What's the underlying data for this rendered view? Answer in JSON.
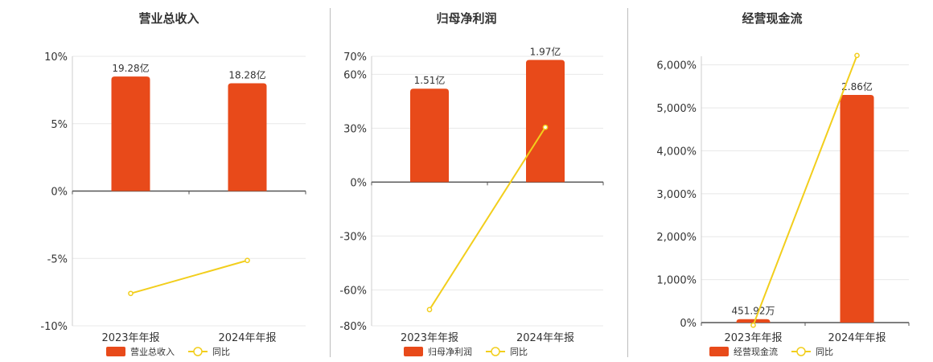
{
  "colors": {
    "bar": "#E84A1A",
    "line": "#F2CE1C",
    "grid": "#e8e8e8",
    "axis": "#555555"
  },
  "chart_data": [
    {
      "type": "bar",
      "title": "营业总收入",
      "categories": [
        "2023年年报",
        "2024年年报"
      ],
      "bar_name": "营业总收入",
      "line_name": "同比",
      "ylim": [
        -10,
        10
      ],
      "yticks": [
        10,
        5,
        0,
        -5,
        -10
      ],
      "ytick_labels": [
        "10%",
        "5%",
        "0%",
        "-5%",
        "-10%"
      ],
      "bar_values": [
        8.5,
        8.0
      ],
      "bar_labels": [
        "19.28亿",
        "18.28亿"
      ],
      "line_values": [
        -7.6,
        -5.15
      ],
      "grid": true,
      "legend": "bottom"
    },
    {
      "type": "bar",
      "title": "归母净利润",
      "categories": [
        "2023年年报",
        "2024年年报"
      ],
      "bar_name": "归母净利润",
      "line_name": "同比",
      "ylim": [
        -80,
        70
      ],
      "yticks": [
        70,
        60,
        30,
        0,
        -30,
        -60,
        -80
      ],
      "ytick_labels": [
        "70%",
        "60%",
        "30%",
        "0%",
        "-30%",
        "-60%",
        "-80%"
      ],
      "bar_values": [
        52,
        68
      ],
      "bar_labels": [
        "1.51亿",
        "1.97亿"
      ],
      "line_values": [
        -71,
        30.5
      ],
      "grid": true,
      "legend": "bottom"
    },
    {
      "type": "bar",
      "title": "经营现金流",
      "categories": [
        "2023年年报",
        "2024年年报"
      ],
      "bar_name": "经营现金流",
      "line_name": "同比",
      "ylim": [
        0,
        6200
      ],
      "yticks": [
        6000,
        5000,
        4000,
        3000,
        2000,
        1000,
        0
      ],
      "ytick_labels": [
        "6,000%",
        "5,000%",
        "4,000%",
        "3,000%",
        "2,000%",
        "1,000%",
        "0%"
      ],
      "bar_values": [
        80,
        5300
      ],
      "bar_labels": [
        "451.92万",
        "2.86亿"
      ],
      "line_values": [
        -60,
        6220
      ],
      "grid": true,
      "legend": "bottom"
    }
  ]
}
